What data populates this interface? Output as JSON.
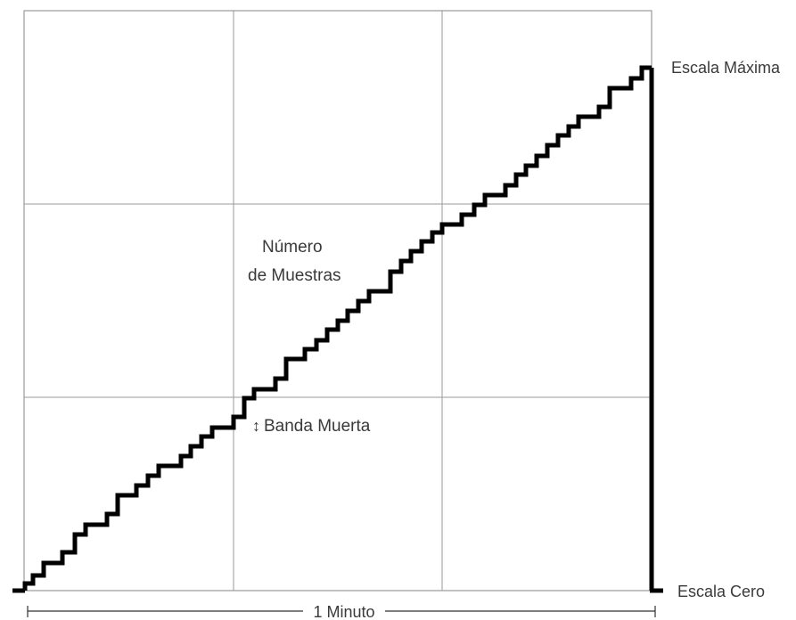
{
  "labels": {
    "max_scale": "Escala Máxima",
    "zero_scale": "Escala Cero",
    "samples_line1": "Número",
    "samples_line2": "de Muestras",
    "dead_band": "Banda Muerta",
    "dead_band_symbol": "↕",
    "time_span": "1 Minuto"
  },
  "grid": {
    "columns": 3,
    "rows": 3
  },
  "colors": {
    "grid": "#9a9a9a",
    "staircase": "#000000",
    "text": "#3a3a3a"
  }
}
